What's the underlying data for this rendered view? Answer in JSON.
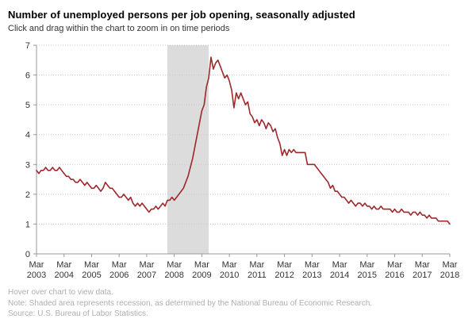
{
  "header": {
    "title": "Number of unemployed persons per job opening, seasonally adjusted",
    "subtitle": "Click and drag within the chart to zoom in on time periods"
  },
  "footer": {
    "hover_note": "Hover over chart to view data.",
    "recession_note": "Note: Shaded area represents recession, as determined by the National Bureau of Economic Research.",
    "source": "Source: U.S. Bureau of Labor Statistics."
  },
  "chart_data": {
    "type": "line",
    "title": "Number of unemployed persons per job opening, seasonally adjusted",
    "series_name": "Unemployed persons per job opening",
    "frequency": "monthly",
    "x_start": "Mar 2003",
    "x_end": "Mar 2018",
    "xlabel": "",
    "ylabel": "",
    "ylim": [
      0,
      7
    ],
    "grid": "dotted horizontal gridlines at each integer",
    "legend": "none",
    "line_color": "#9e282b",
    "axis_color": "#999999",
    "gridline_color": "#c8c8c8",
    "tick_label_color": "#333333",
    "y_ticks": [
      "0",
      "1",
      "2",
      "3",
      "4",
      "5",
      "6",
      "7"
    ],
    "x_ticks": [
      [
        "Mar",
        "2003"
      ],
      [
        "Mar",
        "2004"
      ],
      [
        "Mar",
        "2005"
      ],
      [
        "Mar",
        "2006"
      ],
      [
        "Mar",
        "2007"
      ],
      [
        "Mar",
        "2008"
      ],
      [
        "Mar",
        "2009"
      ],
      [
        "Mar",
        "2010"
      ],
      [
        "Mar",
        "2011"
      ],
      [
        "Mar",
        "2012"
      ],
      [
        "Mar",
        "2013"
      ],
      [
        "Mar",
        "2014"
      ],
      [
        "Mar",
        "2015"
      ],
      [
        "Mar",
        "2016"
      ],
      [
        "Mar",
        "2017"
      ],
      [
        "Mar",
        "2018"
      ]
    ],
    "recession_band": {
      "label": "recession (shaded area)",
      "from": "Dec 2007",
      "to": "Jun 2009",
      "start_index": 57,
      "end_index": 75,
      "color": "#dcdcdc"
    },
    "values": [
      2.8,
      2.7,
      2.8,
      2.8,
      2.9,
      2.8,
      2.8,
      2.9,
      2.8,
      2.8,
      2.9,
      2.8,
      2.7,
      2.6,
      2.6,
      2.5,
      2.5,
      2.4,
      2.4,
      2.5,
      2.4,
      2.3,
      2.4,
      2.3,
      2.2,
      2.2,
      2.3,
      2.2,
      2.1,
      2.2,
      2.4,
      2.3,
      2.2,
      2.2,
      2.1,
      2.0,
      1.9,
      1.9,
      2.0,
      1.9,
      1.8,
      1.9,
      1.7,
      1.6,
      1.7,
      1.6,
      1.7,
      1.6,
      1.5,
      1.4,
      1.5,
      1.5,
      1.6,
      1.5,
      1.6,
      1.7,
      1.6,
      1.8,
      1.8,
      1.9,
      1.8,
      1.9,
      2.0,
      2.1,
      2.2,
      2.4,
      2.6,
      2.9,
      3.2,
      3.6,
      4.0,
      4.4,
      4.8,
      5.0,
      5.6,
      5.9,
      6.6,
      6.2,
      6.4,
      6.5,
      6.3,
      6.1,
      5.9,
      6.0,
      5.8,
      5.5,
      4.9,
      5.4,
      5.2,
      5.4,
      5.2,
      5.0,
      5.1,
      4.7,
      4.6,
      4.4,
      4.5,
      4.3,
      4.5,
      4.4,
      4.2,
      4.4,
      4.3,
      4.1,
      4.2,
      3.9,
      3.7,
      3.3,
      3.5,
      3.3,
      3.5,
      3.4,
      3.5,
      3.4,
      3.4,
      3.4,
      3.4,
      3.4,
      3.0,
      3.0,
      3.0,
      3.0,
      2.9,
      2.8,
      2.7,
      2.6,
      2.5,
      2.4,
      2.2,
      2.3,
      2.1,
      2.1,
      2.0,
      1.9,
      1.9,
      1.8,
      1.7,
      1.8,
      1.7,
      1.6,
      1.7,
      1.7,
      1.6,
      1.7,
      1.6,
      1.6,
      1.5,
      1.6,
      1.5,
      1.5,
      1.6,
      1.5,
      1.5,
      1.5,
      1.5,
      1.4,
      1.5,
      1.4,
      1.4,
      1.5,
      1.4,
      1.4,
      1.4,
      1.3,
      1.4,
      1.4,
      1.3,
      1.4,
      1.3,
      1.3,
      1.2,
      1.3,
      1.2,
      1.2,
      1.2,
      1.1,
      1.1,
      1.1,
      1.1,
      1.1,
      1.0
    ]
  }
}
